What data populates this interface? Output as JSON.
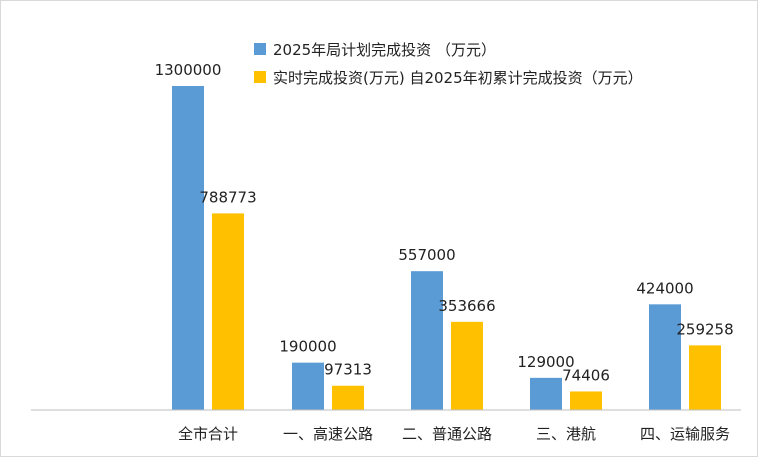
{
  "chart_data": {
    "type": "bar",
    "title": "",
    "xlabel": "",
    "ylabel": "",
    "ylim": [
      0,
      1400000
    ],
    "grid": false,
    "legend_position": "top-right",
    "categories": [
      "全市合计",
      "一、高速公路",
      "二、普通公路",
      "三、港航",
      "四、运输服务"
    ],
    "series": [
      {
        "name": "2025年局计划完成投资 （万元）",
        "color": "#5b9bd5",
        "values": [
          1300000,
          190000,
          557000,
          129000,
          424000
        ]
      },
      {
        "name": "实时完成投资(万元) 自2025年初累计完成投资（万元）",
        "color": "#ffc000",
        "values": [
          788773,
          97313,
          353666,
          74406,
          259258
        ]
      }
    ]
  }
}
